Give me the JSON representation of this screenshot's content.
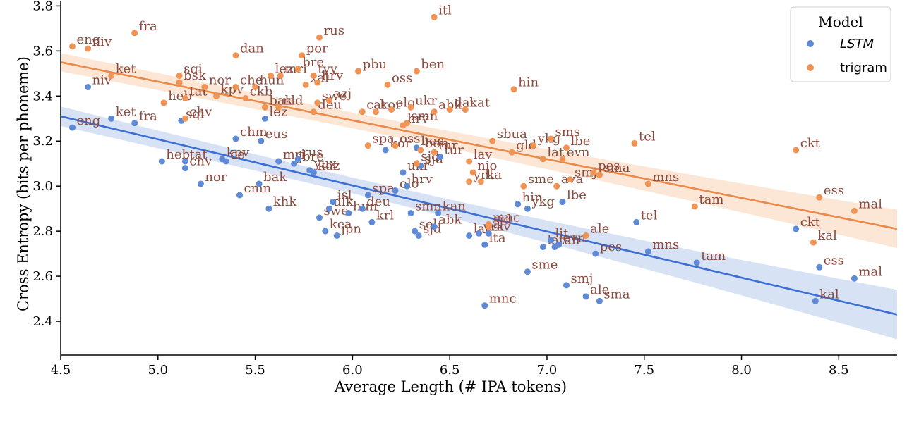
{
  "chart_data": {
    "type": "scatter",
    "xlabel": "Average Length (# IPA tokens)",
    "ylabel": "Cross Entropy (bits per phoneme)",
    "xlim": [
      4.5,
      8.8
    ],
    "ylim": [
      2.25,
      3.82
    ],
    "xticks": [
      4.5,
      5.0,
      5.5,
      6.0,
      6.5,
      7.0,
      7.5,
      8.0,
      8.5
    ],
    "xtick_labels": [
      "4.5",
      "5.0",
      "5.5",
      "6.0",
      "6.5",
      "7.0",
      "7.5",
      "8.0",
      "8.5"
    ],
    "yticks": [
      2.4,
      2.6,
      2.8,
      3.0,
      3.2,
      3.4,
      3.6,
      3.8
    ],
    "ytick_labels": [
      "2.4",
      "2.6",
      "2.8",
      "3.0",
      "3.2",
      "3.4",
      "3.6",
      "3.8"
    ],
    "grid": false,
    "legend": {
      "title": "Model",
      "position": "top-right",
      "entries": [
        {
          "label": "LSTM",
          "italic": true,
          "color": "#5f8ad6"
        },
        {
          "label": "trigram",
          "italic": false,
          "color": "#ef9455"
        }
      ]
    },
    "label_color": "#8c4a3e",
    "series": [
      {
        "name": "LSTM",
        "color": "#5f8ad6",
        "line_color": "#3b6fd4",
        "band_color": "#c9d8f2",
        "fit": {
          "x": [
            4.5,
            8.8
          ],
          "y": [
            3.31,
            2.43
          ],
          "band_start": 0.035,
          "band_end": 0.11
        },
        "points": [
          {
            "label": "eng",
            "x": 4.56,
            "y": 3.26
          },
          {
            "label": "niv",
            "x": 4.64,
            "y": 3.44
          },
          {
            "label": "ket",
            "x": 4.76,
            "y": 3.3
          },
          {
            "label": "fra",
            "x": 4.88,
            "y": 3.28
          },
          {
            "label": "heb",
            "x": 5.02,
            "y": 3.11
          },
          {
            "label": "sqi",
            "x": 5.12,
            "y": 3.29
          },
          {
            "label": "tat",
            "x": 5.14,
            "y": 3.11
          },
          {
            "label": "chv",
            "x": 5.14,
            "y": 3.08
          },
          {
            "label": "nor",
            "x": 5.22,
            "y": 3.01
          },
          {
            "label": "kpv",
            "x": 5.33,
            "y": 3.12
          },
          {
            "label": "ce",
            "x": 5.35,
            "y": 3.11
          },
          {
            "label": "chm",
            "x": 5.4,
            "y": 3.21
          },
          {
            "label": "cmn",
            "x": 5.42,
            "y": 2.96
          },
          {
            "label": "bak",
            "x": 5.52,
            "y": 3.01
          },
          {
            "label": "eus",
            "x": 5.53,
            "y": 3.2
          },
          {
            "label": "mri",
            "x": 5.62,
            "y": 3.11
          },
          {
            "label": "khk",
            "x": 5.57,
            "y": 2.9
          },
          {
            "label": "lez",
            "x": 5.55,
            "y": 3.3
          },
          {
            "label": "jbre",
            "x": 5.7,
            "y": 3.1
          },
          {
            "label": "rus",
            "x": 5.72,
            "y": 3.12
          },
          {
            "label": "yux",
            "x": 5.78,
            "y": 3.07
          },
          {
            "label": "kaz",
            "x": 5.8,
            "y": 3.06
          },
          {
            "label": "swe",
            "x": 5.83,
            "y": 2.86
          },
          {
            "label": "kca",
            "x": 5.86,
            "y": 2.8
          },
          {
            "label": "jpn",
            "x": 5.92,
            "y": 2.78
          },
          {
            "label": "isl",
            "x": 5.9,
            "y": 2.93
          },
          {
            "label": "dlk",
            "x": 5.88,
            "y": 2.9
          },
          {
            "label": "hun",
            "x": 5.98,
            "y": 2.88
          },
          {
            "label": "krl",
            "x": 6.1,
            "y": 2.84
          },
          {
            "label": "deu",
            "x": 6.05,
            "y": 2.9
          },
          {
            "label": "spa",
            "x": 6.08,
            "y": 2.96
          },
          {
            "label": "olo",
            "x": 6.22,
            "y": 2.98
          },
          {
            "label": "ukr",
            "x": 6.26,
            "y": 3.06
          },
          {
            "label": "sjd",
            "x": 6.35,
            "y": 3.09
          },
          {
            "label": "hrv",
            "x": 6.28,
            "y": 3.0
          },
          {
            "label": "smn",
            "x": 6.3,
            "y": 2.88
          },
          {
            "label": "kan",
            "x": 6.44,
            "y": 2.88
          },
          {
            "label": "sel",
            "x": 6.32,
            "y": 2.8
          },
          {
            "label": "sjd",
            "x": 6.34,
            "y": 2.78
          },
          {
            "label": "abk",
            "x": 6.42,
            "y": 2.82
          },
          {
            "label": "ben",
            "x": 6.33,
            "y": 3.17
          },
          {
            "label": "tur",
            "x": 6.45,
            "y": 3.13
          },
          {
            "label": "kor",
            "x": 6.17,
            "y": 3.16
          },
          {
            "label": "lav",
            "x": 6.6,
            "y": 2.78
          },
          {
            "label": "yrk",
            "x": 6.65,
            "y": 2.79
          },
          {
            "label": "lta",
            "x": 6.68,
            "y": 2.74
          },
          {
            "label": "slv",
            "x": 6.7,
            "y": 2.79
          },
          {
            "label": "hin",
            "x": 6.85,
            "y": 2.92
          },
          {
            "label": "ykg",
            "x": 6.9,
            "y": 2.9
          },
          {
            "label": "lbe",
            "x": 7.08,
            "y": 2.93
          },
          {
            "label": "sme",
            "x": 6.9,
            "y": 2.62
          },
          {
            "label": "mnc",
            "x": 6.68,
            "y": 2.47
          },
          {
            "label": "lit",
            "x": 7.02,
            "y": 2.76
          },
          {
            "label": "lat",
            "x": 6.98,
            "y": 2.73
          },
          {
            "label": "tah",
            "x": 7.04,
            "y": 2.73
          },
          {
            "label": "evn",
            "x": 7.06,
            "y": 2.74
          },
          {
            "label": "smj",
            "x": 7.1,
            "y": 2.56
          },
          {
            "label": "ale",
            "x": 7.2,
            "y": 2.51
          },
          {
            "label": "sma",
            "x": 7.27,
            "y": 2.49
          },
          {
            "label": "pes",
            "x": 7.25,
            "y": 2.7
          },
          {
            "label": "tel",
            "x": 7.46,
            "y": 2.84
          },
          {
            "label": "mns",
            "x": 7.52,
            "y": 2.71
          },
          {
            "label": "tam",
            "x": 7.77,
            "y": 2.66
          },
          {
            "label": "ckt",
            "x": 8.28,
            "y": 2.81
          },
          {
            "label": "ess",
            "x": 8.4,
            "y": 2.64
          },
          {
            "label": "mal",
            "x": 8.58,
            "y": 2.59
          },
          {
            "label": "kal",
            "x": 8.38,
            "y": 2.49
          }
        ]
      },
      {
        "name": "trigram",
        "color": "#ef9455",
        "line_color": "#eb8a48",
        "band_color": "#fbddc7",
        "fit": {
          "x": [
            4.5,
            8.8
          ],
          "y": [
            3.55,
            2.81
          ],
          "band_start": 0.035,
          "band_end": 0.085
        },
        "points": [
          {
            "label": "eng",
            "x": 4.56,
            "y": 3.62
          },
          {
            "label": "niv",
            "x": 4.64,
            "y": 3.61
          },
          {
            "label": "fra",
            "x": 4.88,
            "y": 3.68
          },
          {
            "label": "ket",
            "x": 4.76,
            "y": 3.49
          },
          {
            "label": "heb",
            "x": 5.03,
            "y": 3.37
          },
          {
            "label": "sqi",
            "x": 5.11,
            "y": 3.49
          },
          {
            "label": "bsk",
            "x": 5.11,
            "y": 3.46
          },
          {
            "label": "tat",
            "x": 5.14,
            "y": 3.39
          },
          {
            "label": "nor",
            "x": 5.24,
            "y": 3.44
          },
          {
            "label": "chv",
            "x": 5.14,
            "y": 3.3
          },
          {
            "label": "kpv",
            "x": 5.3,
            "y": 3.4
          },
          {
            "label": "dan",
            "x": 5.4,
            "y": 3.58
          },
          {
            "label": "che",
            "x": 5.4,
            "y": 3.44
          },
          {
            "label": "hun",
            "x": 5.5,
            "y": 3.44
          },
          {
            "label": "lez",
            "x": 5.58,
            "y": 3.49
          },
          {
            "label": "ckb",
            "x": 5.45,
            "y": 3.39
          },
          {
            "label": "bak",
            "x": 5.55,
            "y": 3.35
          },
          {
            "label": "nld",
            "x": 5.62,
            "y": 3.35
          },
          {
            "label": "mri",
            "x": 5.63,
            "y": 3.49
          },
          {
            "label": "bre",
            "x": 5.72,
            "y": 3.52
          },
          {
            "label": "por",
            "x": 5.74,
            "y": 3.58
          },
          {
            "label": "rus",
            "x": 5.83,
            "y": 3.66
          },
          {
            "label": "xal",
            "x": 5.76,
            "y": 3.45
          },
          {
            "label": "hrv",
            "x": 5.82,
            "y": 3.46
          },
          {
            "label": "tyv",
            "x": 5.8,
            "y": 3.49
          },
          {
            "label": "swe",
            "x": 5.82,
            "y": 3.37
          },
          {
            "label": "azj",
            "x": 5.88,
            "y": 3.38
          },
          {
            "label": "deu",
            "x": 5.8,
            "y": 3.33
          },
          {
            "label": "pbu",
            "x": 6.03,
            "y": 3.51
          },
          {
            "label": "oss",
            "x": 6.18,
            "y": 3.45
          },
          {
            "label": "cat",
            "x": 6.05,
            "y": 3.33
          },
          {
            "label": "kor",
            "x": 6.12,
            "y": 3.33
          },
          {
            "label": "olo",
            "x": 6.2,
            "y": 3.34
          },
          {
            "label": "ukr",
            "x": 6.3,
            "y": 3.35
          },
          {
            "label": "smn",
            "x": 6.28,
            "y": 3.28
          },
          {
            "label": "hrv",
            "x": 6.26,
            "y": 3.27
          },
          {
            "label": "ben",
            "x": 6.33,
            "y": 3.51
          },
          {
            "label": "itl",
            "x": 6.42,
            "y": 3.75
          },
          {
            "label": "abk",
            "x": 6.42,
            "y": 3.33
          },
          {
            "label": "dar",
            "x": 6.5,
            "y": 3.34
          },
          {
            "label": "kat",
            "x": 6.58,
            "y": 3.34
          },
          {
            "label": "hin",
            "x": 6.83,
            "y": 3.43
          },
          {
            "label": "spa",
            "x": 6.08,
            "y": 3.18
          },
          {
            "label": "sjd",
            "x": 6.33,
            "y": 3.1
          },
          {
            "label": "oss",
            "x": 6.22,
            "y": 3.18
          },
          {
            "label": "ben",
            "x": 6.35,
            "y": 3.16
          },
          {
            "label": "tur",
            "x": 6.42,
            "y": 3.15
          },
          {
            "label": "lav",
            "x": 6.6,
            "y": 3.11
          },
          {
            "label": "nio",
            "x": 6.62,
            "y": 3.06
          },
          {
            "label": "yrk",
            "x": 6.6,
            "y": 3.02
          },
          {
            "label": "lta",
            "x": 6.66,
            "y": 3.02
          },
          {
            "label": "sbua",
            "x": 6.72,
            "y": 3.2
          },
          {
            "label": "gld",
            "x": 6.82,
            "y": 3.15
          },
          {
            "label": "ykg",
            "x": 6.93,
            "y": 3.18
          },
          {
            "label": "sms",
            "x": 7.02,
            "y": 3.21
          },
          {
            "label": "lat",
            "x": 6.98,
            "y": 3.12
          },
          {
            "label": "evn",
            "x": 7.08,
            "y": 3.12
          },
          {
            "label": "lbe",
            "x": 7.1,
            "y": 3.17
          },
          {
            "label": "sme",
            "x": 6.88,
            "y": 3.0
          },
          {
            "label": "ava",
            "x": 7.05,
            "y": 3.0
          },
          {
            "label": "smj",
            "x": 7.12,
            "y": 3.03
          },
          {
            "label": "pes",
            "x": 7.24,
            "y": 3.06
          },
          {
            "label": "sma",
            "x": 7.27,
            "y": 3.05
          },
          {
            "label": "mnc",
            "x": 6.7,
            "y": 2.83
          },
          {
            "label": "sjd",
            "x": 6.7,
            "y": 2.82
          },
          {
            "label": "ale",
            "x": 7.2,
            "y": 2.78
          },
          {
            "label": "tel",
            "x": 7.45,
            "y": 3.19
          },
          {
            "label": "mns",
            "x": 7.52,
            "y": 3.01
          },
          {
            "label": "tam",
            "x": 7.76,
            "y": 2.91
          },
          {
            "label": "ckt",
            "x": 8.28,
            "y": 3.16
          },
          {
            "label": "ess",
            "x": 8.4,
            "y": 2.95
          },
          {
            "label": "mal",
            "x": 8.58,
            "y": 2.89
          },
          {
            "label": "kal",
            "x": 8.37,
            "y": 2.75
          }
        ]
      }
    ]
  }
}
